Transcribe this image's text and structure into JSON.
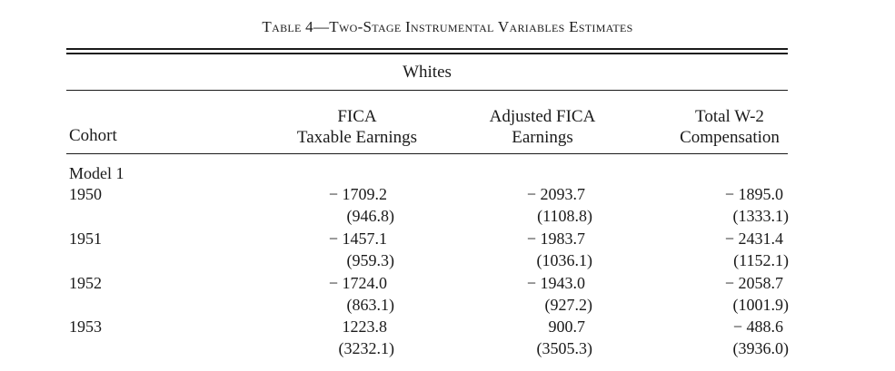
{
  "table": {
    "title": "Table 4—Two-Stage Instrumental Variables Estimates",
    "group_header": "Whites",
    "row_header_label": "Cohort",
    "columns": [
      {
        "line1": "FICA",
        "line2": "Taxable Earnings"
      },
      {
        "line1": "Adjusted FICA",
        "line2": "Earnings"
      },
      {
        "line1": "Total W-2",
        "line2": "Compensation"
      }
    ],
    "section_label": "Model 1",
    "rows": [
      {
        "cohort": "1950",
        "estimates": [
          "− 1709.2",
          "− 2093.7",
          "− 1895.0"
        ],
        "std_errors": [
          "(946.8)",
          "(1108.8)",
          "(1333.1)"
        ]
      },
      {
        "cohort": "1951",
        "estimates": [
          "− 1457.1",
          "− 1983.7",
          "− 2431.4"
        ],
        "std_errors": [
          "(959.3)",
          "(1036.1)",
          "(1152.1)"
        ]
      },
      {
        "cohort": "1952",
        "estimates": [
          "− 1724.0",
          "− 1943.0",
          "− 2058.7"
        ],
        "std_errors": [
          "(863.1)",
          "(927.2)",
          "(1001.9)"
        ]
      },
      {
        "cohort": "1953",
        "estimates": [
          "1223.8",
          "900.7",
          "− 488.6"
        ],
        "std_errors": [
          "(3232.1)",
          "(3505.3)",
          "(3936.0)"
        ]
      }
    ]
  }
}
